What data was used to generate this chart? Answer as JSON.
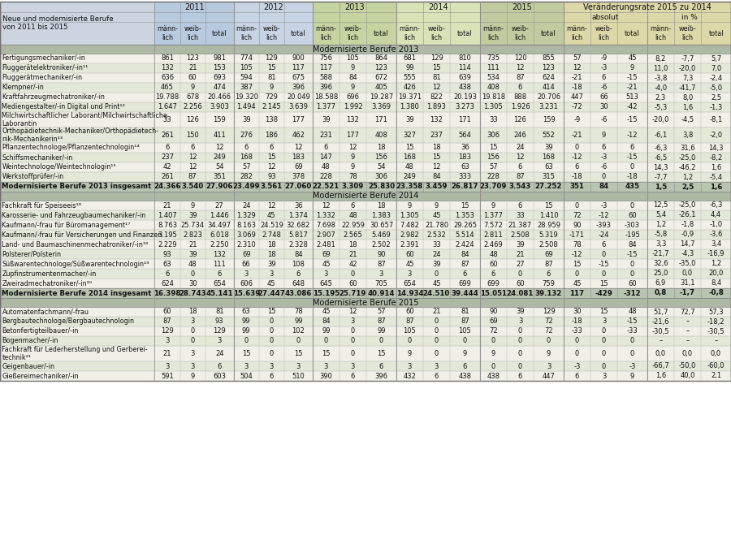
{
  "section1_title": "Modernisierte Berufe 2013",
  "section1": [
    [
      "Fertigungsmechaniker/-in",
      "861",
      "123",
      "981",
      "774",
      "129",
      "900",
      "756",
      "105",
      "864",
      "681",
      "129",
      "810",
      "735",
      "120",
      "855",
      "57",
      "-9",
      "45",
      "8,2",
      "-7,7",
      "5,7"
    ],
    [
      "Fluggerätelektroniker/-in¹¹",
      "132",
      "21",
      "153",
      "105",
      "15",
      "117",
      "117",
      "9",
      "123",
      "99",
      "15",
      "114",
      "111",
      "12",
      "123",
      "12",
      "-3",
      "9",
      "11,0",
      "-20,0",
      "7,0"
    ],
    [
      "Fluggerätmechaniker/-in",
      "636",
      "60",
      "693",
      "594",
      "81",
      "675",
      "588",
      "84",
      "672",
      "555",
      "81",
      "639",
      "534",
      "87",
      "624",
      "-21",
      "6",
      "-15",
      "-3,8",
      "7,3",
      "-2,4"
    ],
    [
      "Klempner/-in",
      "465",
      "9",
      "474",
      "387",
      "9",
      "396",
      "396",
      "9",
      "405",
      "426",
      "12",
      "438",
      "408",
      "6",
      "414",
      "-18",
      "-6",
      "-21",
      "-4,0",
      "-41,7",
      "-5,0"
    ],
    [
      "Kraftfahrzeugmechatroniker/-in",
      "19.788",
      "678",
      "20.466",
      "19.320",
      "729",
      "20.049",
      "18.588",
      "696",
      "19.287",
      "19.371",
      "822",
      "20.193",
      "19.818",
      "888",
      "20.706",
      "447",
      "66",
      "513",
      "2,3",
      "8,0",
      "2,5"
    ],
    [
      "Mediengestalter/-in Digital und Print¹²",
      "1.647",
      "2.256",
      "3.903",
      "1.494",
      "2.145",
      "3.639",
      "1.377",
      "1.992",
      "3.369",
      "1.380",
      "1.893",
      "3.273",
      "1.305",
      "1.926",
      "3.231",
      "-72",
      "30",
      "-42",
      "-5,3",
      "1,6",
      "-1,3"
    ],
    [
      "Milchwirtschaftlicher Laborant/Milchwirtschaftliche\nLaborantin",
      "33",
      "126",
      "159",
      "39",
      "138",
      "177",
      "39",
      "132",
      "171",
      "39",
      "132",
      "171",
      "33",
      "126",
      "159",
      "-9",
      "-6",
      "-15",
      "-20,0",
      "-4,5",
      "-8,1"
    ],
    [
      "Orthopädietechnik-Mechaniker/Orthopädietech-\nnik-Mechanikerin¹³",
      "261",
      "150",
      "411",
      "276",
      "186",
      "462",
      "231",
      "177",
      "408",
      "327",
      "237",
      "564",
      "306",
      "246",
      "552",
      "-21",
      "9",
      "-12",
      "-6,1",
      "3,8",
      "-2,0"
    ],
    [
      "Pflanzentechnologe/Pflanzentechnologin¹⁴",
      "6",
      "6",
      "12",
      "6",
      "6",
      "12",
      "6",
      "12",
      "18",
      "15",
      "18",
      "36",
      "15",
      "24",
      "39",
      "0",
      "6",
      "6",
      "-6,3",
      "31,6",
      "14,3"
    ],
    [
      "Schiffsmechaniker/-in",
      "237",
      "12",
      "249",
      "168",
      "15",
      "183",
      "147",
      "9",
      "156",
      "168",
      "15",
      "183",
      "156",
      "12",
      "168",
      "-12",
      "-3",
      "-15",
      "-6,5",
      "-25,0",
      "-8,2"
    ],
    [
      "Weintechnologe/Weintechnologin¹⁵",
      "42",
      "12",
      "54",
      "57",
      "12",
      "69",
      "48",
      "9",
      "54",
      "48",
      "12",
      "63",
      "57",
      "6",
      "63",
      "6",
      "-6",
      "0",
      "14,3",
      "-46,2",
      "1,6"
    ],
    [
      "Werkstoffprüfer/-in",
      "261",
      "87",
      "351",
      "282",
      "93",
      "378",
      "228",
      "78",
      "306",
      "249",
      "84",
      "333",
      "228",
      "87",
      "315",
      "-18",
      "0",
      "-18",
      "-7,7",
      "1,2",
      "-5,4"
    ]
  ],
  "section1_total": [
    "Modernisierte Berufe 2013 insgesamt",
    "24.366",
    "3.540",
    "27.906",
    "23.499",
    "3.561",
    "27.060",
    "22.521",
    "3.309",
    "25.830",
    "23.358",
    "3.459",
    "26.817",
    "23.709",
    "3.543",
    "27.252",
    "351",
    "84",
    "435",
    "1,5",
    "2,5",
    "1,6"
  ],
  "section2_title": "Modernisierte Berufe 2014",
  "section2": [
    [
      "Fachkraft für Speiseeis¹⁶",
      "21",
      "9",
      "27",
      "24",
      "12",
      "36",
      "12",
      "6",
      "18",
      "9",
      "9",
      "15",
      "9",
      "6",
      "15",
      "0",
      "-3",
      "0",
      "12,5",
      "-25,0",
      "-6,3"
    ],
    [
      "Karosserie- und Fahrzeugbaumechaniker/-in",
      "1.407",
      "39",
      "1.446",
      "1.329",
      "45",
      "1.374",
      "1.332",
      "48",
      "1.383",
      "1.305",
      "45",
      "1.353",
      "1.377",
      "33",
      "1.410",
      "72",
      "-12",
      "60",
      "5,4",
      "-26,1",
      "4,4"
    ],
    [
      "Kaufmann/-frau für Büromanagement¹⁷",
      "8.763",
      "25.734",
      "34.497",
      "8.163",
      "24.519",
      "32.682",
      "7.698",
      "22.959",
      "30.657",
      "7.482",
      "21.780",
      "29.265",
      "7.572",
      "21.387",
      "28.959",
      "90",
      "-393",
      "-303",
      "1,2",
      "-1,8",
      "-1,0"
    ],
    [
      "Kaufmann/-frau für Versicherungen und Finanzen",
      "3.195",
      "2.823",
      "6.018",
      "3.069",
      "2.748",
      "5.817",
      "2.907",
      "2.565",
      "5.469",
      "2.982",
      "2.532",
      "5.514",
      "2.811",
      "2.508",
      "5.319",
      "-171",
      "-24",
      "-195",
      "-5,8",
      "-0,9",
      "-3,6"
    ],
    [
      "Land- und Baumaschinenmechatroniker/-in¹⁸",
      "2.229",
      "21",
      "2.250",
      "2.310",
      "18",
      "2.328",
      "2.481",
      "18",
      "2.502",
      "2.391",
      "33",
      "2.424",
      "2.469",
      "39",
      "2.508",
      "78",
      "6",
      "84",
      "3,3",
      "14,7",
      "3,4"
    ],
    [
      "Polsterer/Polsterin",
      "93",
      "39",
      "132",
      "69",
      "18",
      "84",
      "69",
      "21",
      "90",
      "60",
      "24",
      "84",
      "48",
      "21",
      "69",
      "-12",
      "0",
      "-15",
      "-21,7",
      "-4,3",
      "-16,9"
    ],
    [
      "Süßwarentechnologe/Süßwarentechnologin¹⁹",
      "63",
      "48",
      "111",
      "66",
      "39",
      "108",
      "45",
      "42",
      "87",
      "45",
      "39",
      "87",
      "60",
      "27",
      "87",
      "15",
      "-15",
      "0",
      "32,6",
      "-35,0",
      "1,2"
    ],
    [
      "Zupfinstrumentenmacher/-in",
      "6",
      "0",
      "6",
      "3",
      "3",
      "6",
      "3",
      "0",
      "3",
      "3",
      "0",
      "6",
      "6",
      "0",
      "6",
      "0",
      "0",
      "0",
      "25,0",
      "0,0",
      "20,0"
    ],
    [
      "Zweiradmechatroniker/-in²⁰",
      "624",
      "30",
      "654",
      "606",
      "45",
      "648",
      "645",
      "60",
      "705",
      "654",
      "45",
      "699",
      "699",
      "60",
      "759",
      "45",
      "15",
      "60",
      "6,9",
      "31,1",
      "8,4"
    ]
  ],
  "section2_total": [
    "Modernisierte Berufe 2014 insgesamt",
    "16.398",
    "28.743",
    "45.141",
    "15.639",
    "27.447",
    "43.086",
    "15.195",
    "25.719",
    "40.914",
    "14.934",
    "24.510",
    "39.444",
    "15.051",
    "24.081",
    "39.132",
    "117",
    "-429",
    "-312",
    "0,8",
    "-1,7",
    "-0,8"
  ],
  "section3_title": "Modernisierte Berufe 2015",
  "section3": [
    [
      "Automatenfachmann/-frau",
      "60",
      "18",
      "81",
      "63",
      "15",
      "78",
      "45",
      "12",
      "57",
      "60",
      "21",
      "81",
      "90",
      "39",
      "129",
      "30",
      "15",
      "48",
      "51,7",
      "72,7",
      "57,3"
    ],
    [
      "Bergbautechnologe/Bergbautechnologin",
      "87",
      "3",
      "93",
      "99",
      "0",
      "99",
      "84",
      "3",
      "87",
      "87",
      "0",
      "87",
      "69",
      "3",
      "72",
      "-18",
      "3",
      "-15",
      "-21,6",
      "–",
      "-18,2"
    ],
    [
      "Betonfertigteilbauer/-in",
      "129",
      "0",
      "129",
      "99",
      "0",
      "102",
      "99",
      "0",
      "99",
      "105",
      "0",
      "105",
      "72",
      "0",
      "72",
      "-33",
      "0",
      "-33",
      "-30,5",
      "–",
      "-30,5"
    ],
    [
      "Bogenmacher/-in",
      "3",
      "0",
      "3",
      "0",
      "0",
      "0",
      "0",
      "0",
      "0",
      "0",
      "0",
      "0",
      "0",
      "0",
      "0",
      "0",
      "0",
      "0",
      "–",
      "–",
      "–"
    ],
    [
      "Fachkraft für Lederherstellung und Gerberei-\ntechnik²¹",
      "21",
      "3",
      "24",
      "15",
      "0",
      "15",
      "15",
      "0",
      "15",
      "9",
      "0",
      "9",
      "9",
      "0",
      "9",
      "0",
      "0",
      "0",
      "0,0",
      "0,0",
      "0,0"
    ],
    [
      "Geigenbauer/-in",
      "3",
      "3",
      "6",
      "3",
      "3",
      "3",
      "3",
      "3",
      "6",
      "3",
      "3",
      "6",
      "0",
      "0",
      "3",
      "-3",
      "0",
      "-3",
      "-66,7",
      "-50,0",
      "-60,0"
    ],
    [
      "Gießereimechaniker/-in",
      "591",
      "9",
      "603",
      "504",
      "6",
      "510",
      "390",
      "6",
      "396",
      "432",
      "6",
      "438",
      "438",
      "6",
      "447",
      "6",
      "3",
      "9",
      "1,6",
      "40,0",
      "2,1"
    ]
  ],
  "colors": {
    "c_header_first_col": "#ccd4e0",
    "c_2011": "#b8cade",
    "c_2012": "#c8d4e4",
    "c_2013": "#c5d4a0",
    "c_2014": "#d8e4b8",
    "c_2015": "#c0cba0",
    "c_change": "#ddd8a8",
    "c_section_bar": "#adb8a5",
    "c_row_light": "#f0f0e8",
    "c_row_medium": "#e4e8d8",
    "c_total_row": "#b8c4b0",
    "c_border": "#909090",
    "c_border_outer": "#707070"
  }
}
